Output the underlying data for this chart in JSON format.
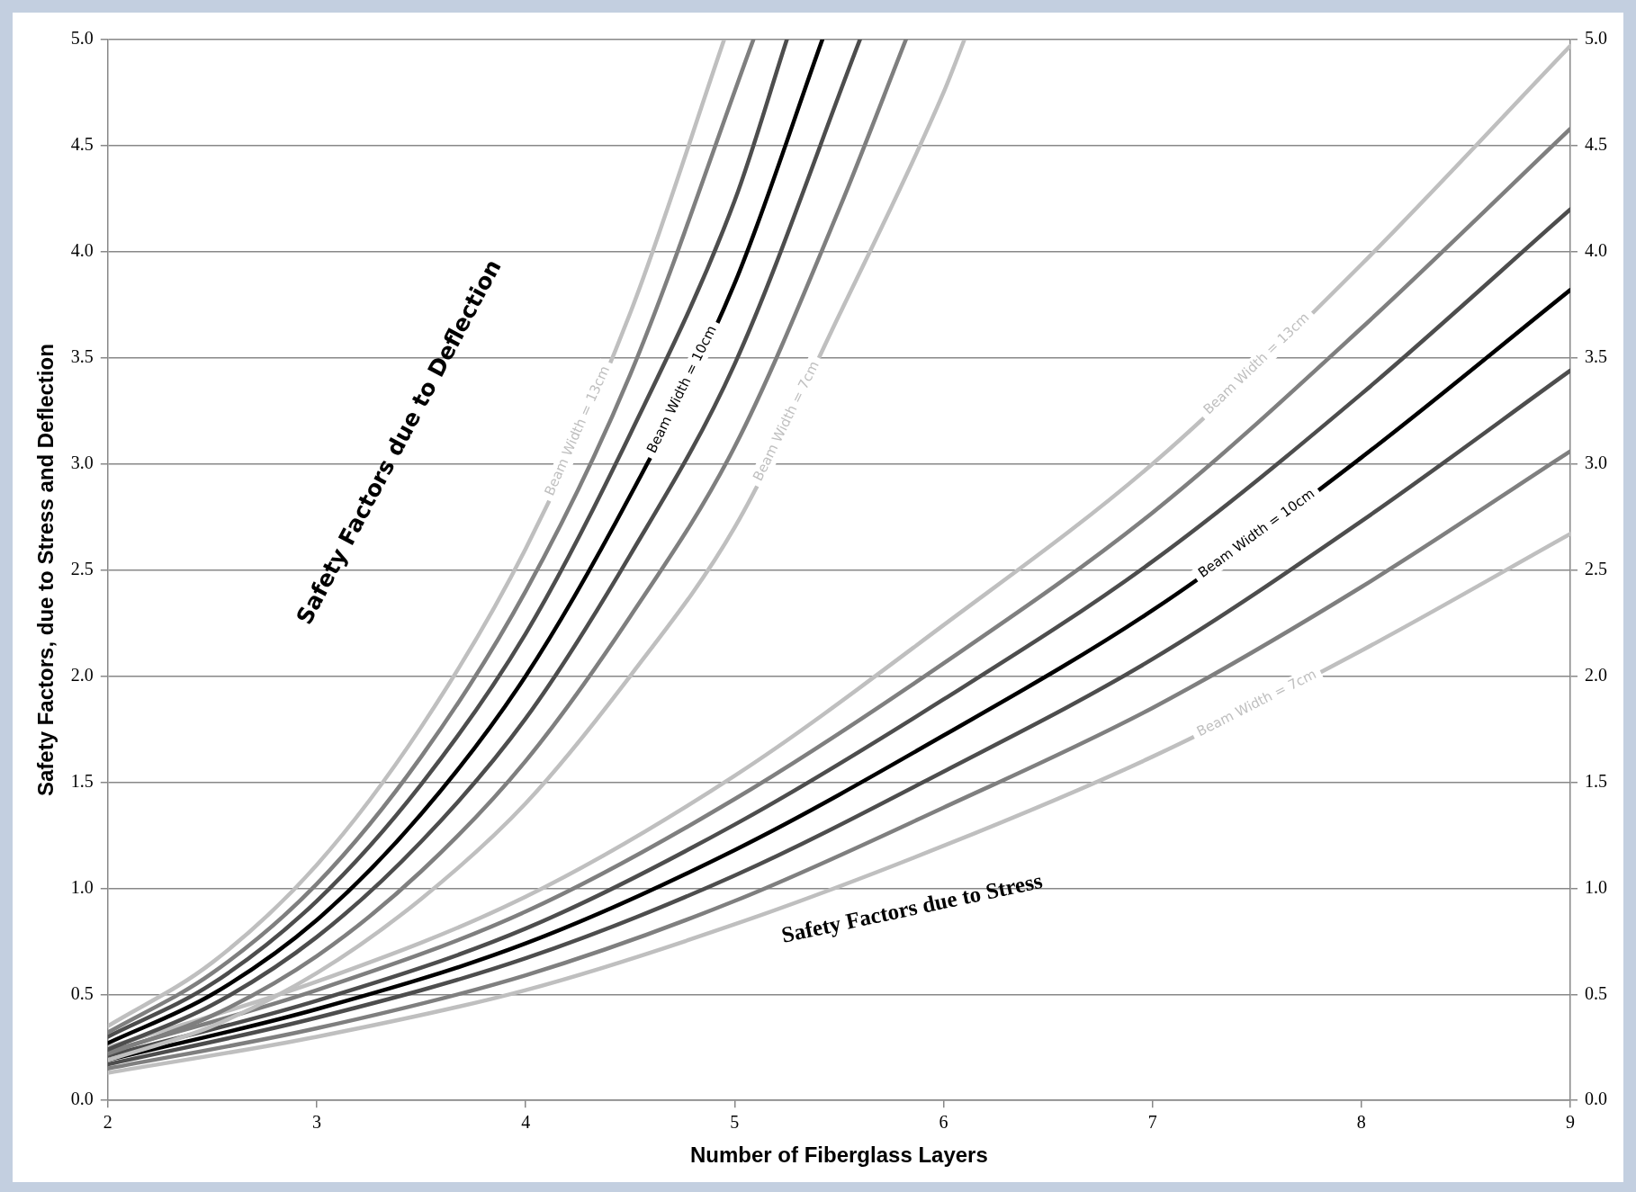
{
  "chart_data": {
    "type": "line",
    "xlabel": "Number of Fiberglass Layers",
    "ylabel": "Safety Factors, due to Stress and Deflection",
    "annotations": [
      "Safety Factors due to Deflection",
      "Safety Factors due to Stress"
    ],
    "xlim": [
      2,
      9
    ],
    "xticks": [
      2,
      3,
      4,
      5,
      6,
      7,
      8,
      9
    ],
    "ylim": [
      0,
      5
    ],
    "yticks": [
      {
        "value": 0,
        "label": "0.0"
      },
      {
        "value": 0.5,
        "label": "0.5"
      },
      {
        "value": 1,
        "label": "1.0"
      },
      {
        "value": 1.5,
        "label": "1.5"
      },
      {
        "value": 2,
        "label": "2.0"
      },
      {
        "value": 2.5,
        "label": "2.5"
      },
      {
        "value": 3,
        "label": "3.0"
      },
      {
        "value": 3.5,
        "label": "3.5"
      },
      {
        "value": 4,
        "label": "4.0"
      },
      {
        "value": 4.5,
        "label": "4.5"
      },
      {
        "value": 5,
        "label": "5.0"
      }
    ],
    "y2lim": [
      0,
      5
    ],
    "y2ticks": [
      {
        "value": 0,
        "label": "0.0"
      },
      {
        "value": 0.5,
        "label": "0.5"
      },
      {
        "value": 1,
        "label": "1.0"
      },
      {
        "value": 1.5,
        "label": "1.5"
      },
      {
        "value": 2,
        "label": "2.0"
      },
      {
        "value": 2.5,
        "label": "2.5"
      },
      {
        "value": 3,
        "label": "3.0"
      },
      {
        "value": 3.5,
        "label": "3.5"
      },
      {
        "value": 4,
        "label": "4.0"
      },
      {
        "value": 4.5,
        "label": "4.5"
      },
      {
        "value": 5,
        "label": "5.0"
      }
    ],
    "grid": "y",
    "legend": false,
    "marker": "none",
    "line_style": "solid",
    "series": [
      {
        "name": "Beam Width = 13cm",
        "color": "#bfbfbf",
        "x": [
          2,
          2.5,
          3,
          3.5,
          4,
          4.5,
          4.95
        ],
        "values": [
          0.35,
          0.65,
          1.11,
          1.76,
          2.6,
          3.71,
          5.0
        ]
      },
      {
        "color": "#7f7f7f",
        "x": [
          2,
          2.5,
          3,
          3.5,
          4,
          4.5,
          5.09
        ],
        "values": [
          0.32,
          0.6,
          1.02,
          1.62,
          2.4,
          3.42,
          5.0
        ]
      },
      {
        "color": "#4d4d4d",
        "x": [
          2,
          2.5,
          3,
          3.5,
          4,
          4.5,
          5,
          5.25
        ],
        "values": [
          0.3,
          0.55,
          0.94,
          1.49,
          2.2,
          3.14,
          4.24,
          5.0
        ]
      },
      {
        "name": "Beam Width = 10cm",
        "color": "#000000",
        "x": [
          2,
          2.5,
          3,
          3.5,
          4,
          4.5,
          5,
          5.42
        ],
        "values": [
          0.27,
          0.5,
          0.85,
          1.35,
          2.0,
          2.85,
          3.85,
          5.0
        ]
      },
      {
        "color": "#4d4d4d",
        "x": [
          2,
          2.5,
          3,
          3.5,
          4,
          4.5,
          5,
          5.6
        ],
        "values": [
          0.24,
          0.45,
          0.77,
          1.22,
          1.8,
          2.57,
          3.47,
          5.0
        ]
      },
      {
        "color": "#7f7f7f",
        "x": [
          2,
          2.5,
          3,
          3.5,
          4,
          4.5,
          5,
          5.5,
          5.82
        ],
        "values": [
          0.22,
          0.4,
          0.68,
          1.08,
          1.6,
          2.28,
          3.08,
          4.2,
          5.0
        ]
      },
      {
        "name": "Beam Width = 7cm",
        "color": "#bfbfbf",
        "x": [
          2,
          2.5,
          3,
          3.5,
          4,
          4.5,
          5,
          5.5,
          6,
          6.1
        ],
        "values": [
          0.19,
          0.35,
          0.6,
          0.95,
          1.4,
          2.0,
          2.7,
          3.7,
          4.75,
          5.0
        ]
      },
      {
        "name": "Beam Width = 13cm",
        "color": "#bfbfbf",
        "x": [
          2,
          3,
          4,
          5,
          6,
          7,
          8,
          9
        ],
        "values": [
          0.25,
          0.56,
          0.96,
          1.53,
          2.24,
          3.0,
          3.94,
          4.97
        ]
      },
      {
        "color": "#7f7f7f",
        "x": [
          2,
          3,
          4,
          5,
          6,
          7,
          8,
          9
        ],
        "values": [
          0.23,
          0.52,
          0.89,
          1.42,
          2.06,
          2.77,
          3.64,
          4.58
        ]
      },
      {
        "color": "#4d4d4d",
        "x": [
          2,
          3,
          4,
          5,
          6,
          7,
          8,
          9
        ],
        "values": [
          0.21,
          0.47,
          0.81,
          1.3,
          1.89,
          2.54,
          3.33,
          4.2
        ]
      },
      {
        "name": "Beam Width = 10cm",
        "color": "#000000",
        "x": [
          2,
          3,
          4,
          5,
          6,
          7,
          8,
          9
        ],
        "values": [
          0.19,
          0.43,
          0.74,
          1.18,
          1.72,
          2.31,
          3.03,
          3.82
        ]
      },
      {
        "color": "#4d4d4d",
        "x": [
          2,
          3,
          4,
          5,
          6,
          7,
          8,
          9
        ],
        "values": [
          0.17,
          0.39,
          0.67,
          1.06,
          1.55,
          2.08,
          2.73,
          3.44
        ]
      },
      {
        "color": "#7f7f7f",
        "x": [
          2,
          3,
          4,
          5,
          6,
          7,
          8,
          9
        ],
        "values": [
          0.15,
          0.34,
          0.59,
          0.94,
          1.38,
          1.85,
          2.42,
          3.06
        ]
      },
      {
        "name": "Beam Width = 7cm",
        "color": "#bfbfbf",
        "x": [
          2,
          3,
          4,
          5,
          6,
          7,
          8,
          9
        ],
        "values": [
          0.13,
          0.3,
          0.52,
          0.83,
          1.2,
          1.62,
          2.12,
          2.67
        ]
      }
    ]
  }
}
